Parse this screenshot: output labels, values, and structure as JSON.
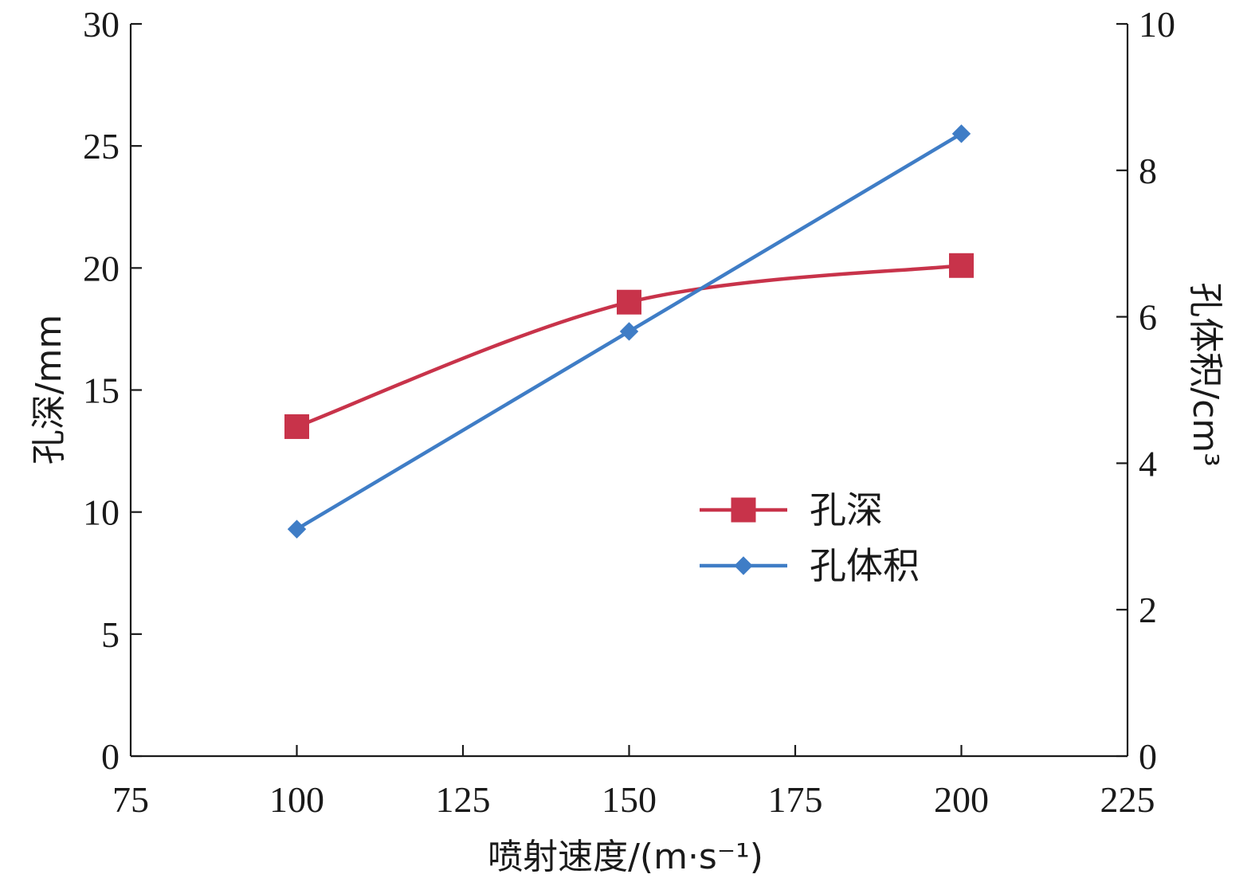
{
  "chart_data": {
    "type": "line",
    "title": "",
    "xlabel": "喷射速度/(m·s⁻¹)",
    "ylabel_left": "孔深/mm",
    "ylabel_right": "孔体积/cm³",
    "xlim": [
      75,
      225
    ],
    "xticks": [
      "75",
      "100",
      "125",
      "150",
      "175",
      "200",
      "225"
    ],
    "ylim_left": [
      0,
      30
    ],
    "yticks_left": [
      "0",
      "5",
      "10",
      "15",
      "20",
      "25",
      "30"
    ],
    "ylim_right": [
      0,
      10
    ],
    "yticks_right": [
      "0",
      "2",
      "4",
      "6",
      "8",
      "10"
    ],
    "grid": false,
    "legend_position": "center-right",
    "series": [
      {
        "name": "孔深",
        "axis": "left",
        "color": "#c8334a",
        "marker": "square",
        "x": [
          100,
          150,
          200
        ],
        "y": [
          13.5,
          18.6,
          20.1
        ]
      },
      {
        "name": "孔体积",
        "axis": "right",
        "color": "#3f7dc6",
        "marker": "diamond",
        "x": [
          100,
          150,
          200
        ],
        "y": [
          3.1,
          5.8,
          8.5
        ]
      }
    ]
  }
}
